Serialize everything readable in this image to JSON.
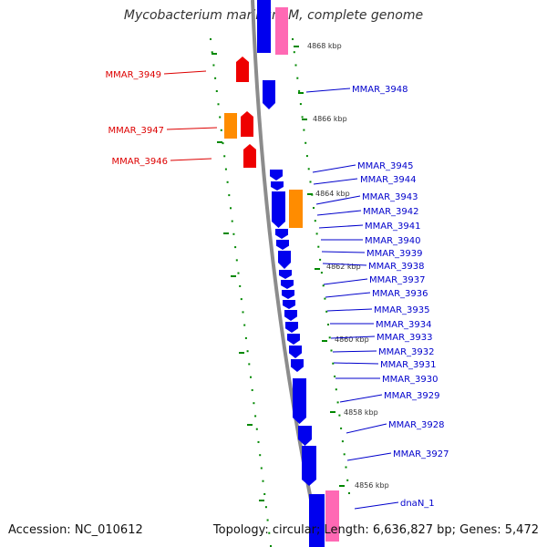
{
  "title": "Mycobacterium marinum M, complete genome",
  "footer": {
    "accession": "Accession: NC_010612",
    "summary": "Topology: circular; Length: 6,636,827 bp; Genes: 5,472"
  },
  "colors": {
    "cds": "#0000ee",
    "pseudo": "#ff8c00",
    "rna": "#ee0000",
    "highlight": "#ff69b4",
    "backbone": "#8c8c8c",
    "ticks": "#008800",
    "label_forward": "#0000cc",
    "label_reverse": "#dd0000",
    "kbp_text": "#333333"
  },
  "scale_labels": [
    "4868 kbp",
    "4866 kbp",
    "4864 kbp",
    "4862 kbp",
    "4860 kbp",
    "4858 kbp",
    "4856 kbp"
  ],
  "genes_forward": [
    "MMAR_3948",
    "MMAR_3945",
    "MMAR_3944",
    "MMAR_3943",
    "MMAR_3942",
    "MMAR_3941",
    "MMAR_3940",
    "MMAR_3939",
    "MMAR_3938",
    "MMAR_3937",
    "MMAR_3936",
    "MMAR_3935",
    "MMAR_3934",
    "MMAR_3933",
    "MMAR_3932",
    "MMAR_3931",
    "MMAR_3930",
    "MMAR_3929",
    "MMAR_3928",
    "MMAR_3927",
    "dnaN_1"
  ],
  "genes_reverse": [
    "MMAR_3949",
    "MMAR_3947",
    "MMAR_3946"
  ]
}
